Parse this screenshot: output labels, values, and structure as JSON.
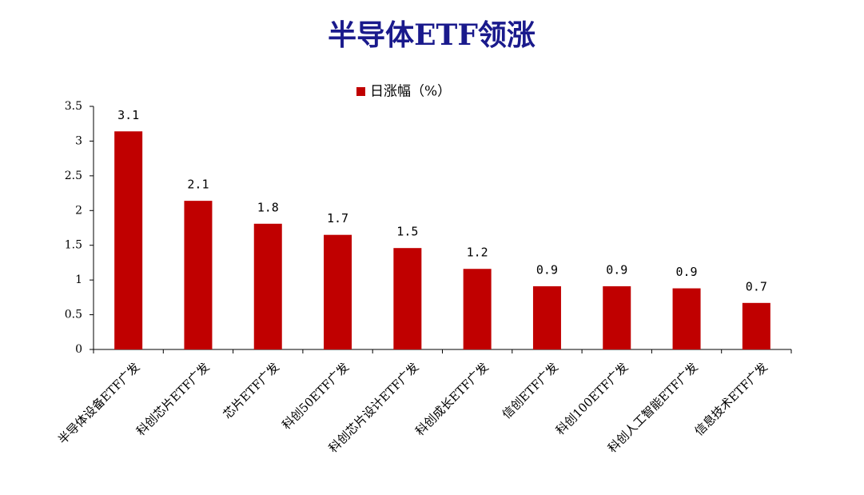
{
  "chart_data": {
    "type": "bar",
    "title": "半导体ETF领涨",
    "categories": [
      "半导体设备ETF广发",
      "科创芯片ETF广发",
      "芯片ETF广发",
      "科创50ETF广发",
      "科创芯片设计ETF广发",
      "科创成长ETF广发",
      "信创ETF广发",
      "科创100ETF广发",
      "科创人工智能ETF广发",
      "信息技术ETF广发"
    ],
    "series": [
      {
        "name": "日涨幅（%）",
        "color": "#c00000",
        "values": [
          3.14,
          2.14,
          1.81,
          1.65,
          1.46,
          1.16,
          0.91,
          0.91,
          0.88,
          0.67
        ],
        "value_labels": [
          "3.1",
          "2.1",
          "1.8",
          "1.7",
          "1.5",
          "1.2",
          "0.9",
          "0.9",
          "0.9",
          "0.7"
        ]
      }
    ],
    "ylim": [
      0,
      3.5
    ],
    "yticks": [
      0,
      0.5,
      1,
      1.5,
      2,
      2.5,
      3,
      3.5
    ],
    "grid": false,
    "legend": "top"
  }
}
